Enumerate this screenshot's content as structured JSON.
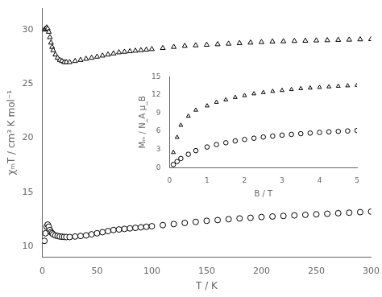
{
  "chart_data": [
    {
      "type": "scatter",
      "xlabel": "T / K",
      "ylabel": "χₘT / cm³ K mol⁻¹",
      "xlim": [
        0,
        300
      ],
      "ylim": [
        9.0,
        32
      ],
      "xticks": [
        0,
        50,
        100,
        150,
        200,
        250,
        300
      ],
      "yticks": [
        10,
        15,
        20,
        25,
        30
      ],
      "grid": false,
      "x": [
        2,
        3,
        4,
        5,
        6,
        7,
        8,
        9,
        10,
        12,
        14,
        16,
        18,
        20,
        22,
        25,
        30,
        35,
        40,
        45,
        50,
        55,
        60,
        65,
        70,
        75,
        80,
        85,
        90,
        95,
        100,
        110,
        120,
        130,
        140,
        150,
        160,
        170,
        180,
        190,
        200,
        210,
        220,
        230,
        240,
        250,
        260,
        270,
        280,
        290,
        300
      ],
      "series": [
        {
          "marker": "triangle",
          "color": "#000000",
          "values": [
            30.0,
            30.1,
            30.2,
            30.1,
            29.8,
            29.3,
            28.8,
            28.4,
            28.1,
            27.7,
            27.4,
            27.2,
            27.1,
            27.0,
            27.0,
            27.0,
            27.1,
            27.2,
            27.3,
            27.4,
            27.5,
            27.6,
            27.7,
            27.8,
            27.9,
            27.95,
            28.0,
            28.05,
            28.1,
            28.15,
            28.2,
            28.3,
            28.4,
            28.5,
            28.55,
            28.6,
            28.65,
            28.7,
            28.75,
            28.8,
            28.85,
            28.9,
            28.92,
            28.95,
            28.97,
            29.0,
            29.02,
            29.05,
            29.07,
            29.1,
            29.12
          ]
        },
        {
          "marker": "circle",
          "color": "#000000",
          "values": [
            10.5,
            11.2,
            11.8,
            12.0,
            11.8,
            11.5,
            11.3,
            11.2,
            11.1,
            11.0,
            10.95,
            10.9,
            10.88,
            10.86,
            10.85,
            10.85,
            10.9,
            10.95,
            11.0,
            11.1,
            11.2,
            11.3,
            11.4,
            11.5,
            11.55,
            11.6,
            11.65,
            11.7,
            11.75,
            11.8,
            11.85,
            11.95,
            12.05,
            12.15,
            12.25,
            12.35,
            12.42,
            12.5,
            12.57,
            12.63,
            12.7,
            12.75,
            12.8,
            12.85,
            12.9,
            12.95,
            13.0,
            13.05,
            13.1,
            13.15,
            13.2
          ]
        }
      ]
    },
    {
      "type": "scatter",
      "xlabel": "B / T",
      "ylabel": "Mₘ / N_A μ_B",
      "xlim": [
        0,
        5
      ],
      "ylim": [
        0,
        15
      ],
      "xticks": [
        0,
        1,
        2,
        3,
        4,
        5
      ],
      "yticks": [
        0,
        3,
        6,
        9,
        12,
        15
      ],
      "grid": false,
      "x": [
        0.1,
        0.2,
        0.3,
        0.5,
        0.7,
        1.0,
        1.25,
        1.5,
        1.75,
        2.0,
        2.25,
        2.5,
        2.75,
        3.0,
        3.25,
        3.5,
        3.75,
        4.0,
        4.25,
        4.5,
        4.75,
        5.0
      ],
      "series": [
        {
          "marker": "triangle",
          "color": "#000000",
          "values": [
            2.5,
            5.0,
            7.0,
            8.5,
            9.5,
            10.2,
            10.8,
            11.2,
            11.6,
            11.9,
            12.2,
            12.4,
            12.6,
            12.75,
            12.9,
            13.05,
            13.15,
            13.25,
            13.35,
            13.45,
            13.52,
            13.6
          ]
        },
        {
          "marker": "circle",
          "color": "#000000",
          "values": [
            0.5,
            1.0,
            1.5,
            2.2,
            2.8,
            3.4,
            3.8,
            4.1,
            4.4,
            4.65,
            4.85,
            5.05,
            5.2,
            5.35,
            5.48,
            5.6,
            5.7,
            5.8,
            5.9,
            5.98,
            6.05,
            6.12
          ]
        }
      ]
    }
  ]
}
